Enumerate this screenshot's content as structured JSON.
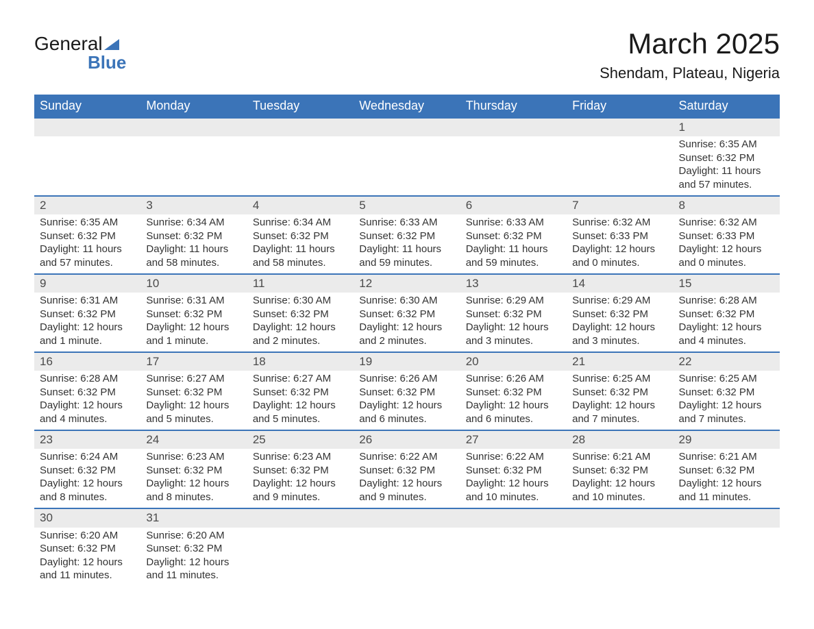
{
  "logo": {
    "word1": "General",
    "word2": "Blue"
  },
  "title": "March 2025",
  "location": "Shendam, Plateau, Nigeria",
  "calendar": {
    "header_bg": "#3b74b8",
    "header_text_color": "#ffffff",
    "daynum_bg": "#ebebeb",
    "row_divider_color": "#3b74b8",
    "body_bg": "#ffffff",
    "text_color": "#333333",
    "font_family": "Arial",
    "header_fontsize": 18,
    "daynum_fontsize": 17,
    "body_fontsize": 15,
    "days_of_week": [
      "Sunday",
      "Monday",
      "Tuesday",
      "Wednesday",
      "Thursday",
      "Friday",
      "Saturday"
    ],
    "weeks": [
      [
        null,
        null,
        null,
        null,
        null,
        null,
        {
          "n": "1",
          "sr": "Sunrise: 6:35 AM",
          "ss": "Sunset: 6:32 PM",
          "dl": "Daylight: 11 hours and 57 minutes."
        }
      ],
      [
        {
          "n": "2",
          "sr": "Sunrise: 6:35 AM",
          "ss": "Sunset: 6:32 PM",
          "dl": "Daylight: 11 hours and 57 minutes."
        },
        {
          "n": "3",
          "sr": "Sunrise: 6:34 AM",
          "ss": "Sunset: 6:32 PM",
          "dl": "Daylight: 11 hours and 58 minutes."
        },
        {
          "n": "4",
          "sr": "Sunrise: 6:34 AM",
          "ss": "Sunset: 6:32 PM",
          "dl": "Daylight: 11 hours and 58 minutes."
        },
        {
          "n": "5",
          "sr": "Sunrise: 6:33 AM",
          "ss": "Sunset: 6:32 PM",
          "dl": "Daylight: 11 hours and 59 minutes."
        },
        {
          "n": "6",
          "sr": "Sunrise: 6:33 AM",
          "ss": "Sunset: 6:32 PM",
          "dl": "Daylight: 11 hours and 59 minutes."
        },
        {
          "n": "7",
          "sr": "Sunrise: 6:32 AM",
          "ss": "Sunset: 6:33 PM",
          "dl": "Daylight: 12 hours and 0 minutes."
        },
        {
          "n": "8",
          "sr": "Sunrise: 6:32 AM",
          "ss": "Sunset: 6:33 PM",
          "dl": "Daylight: 12 hours and 0 minutes."
        }
      ],
      [
        {
          "n": "9",
          "sr": "Sunrise: 6:31 AM",
          "ss": "Sunset: 6:32 PM",
          "dl": "Daylight: 12 hours and 1 minute."
        },
        {
          "n": "10",
          "sr": "Sunrise: 6:31 AM",
          "ss": "Sunset: 6:32 PM",
          "dl": "Daylight: 12 hours and 1 minute."
        },
        {
          "n": "11",
          "sr": "Sunrise: 6:30 AM",
          "ss": "Sunset: 6:32 PM",
          "dl": "Daylight: 12 hours and 2 minutes."
        },
        {
          "n": "12",
          "sr": "Sunrise: 6:30 AM",
          "ss": "Sunset: 6:32 PM",
          "dl": "Daylight: 12 hours and 2 minutes."
        },
        {
          "n": "13",
          "sr": "Sunrise: 6:29 AM",
          "ss": "Sunset: 6:32 PM",
          "dl": "Daylight: 12 hours and 3 minutes."
        },
        {
          "n": "14",
          "sr": "Sunrise: 6:29 AM",
          "ss": "Sunset: 6:32 PM",
          "dl": "Daylight: 12 hours and 3 minutes."
        },
        {
          "n": "15",
          "sr": "Sunrise: 6:28 AM",
          "ss": "Sunset: 6:32 PM",
          "dl": "Daylight: 12 hours and 4 minutes."
        }
      ],
      [
        {
          "n": "16",
          "sr": "Sunrise: 6:28 AM",
          "ss": "Sunset: 6:32 PM",
          "dl": "Daylight: 12 hours and 4 minutes."
        },
        {
          "n": "17",
          "sr": "Sunrise: 6:27 AM",
          "ss": "Sunset: 6:32 PM",
          "dl": "Daylight: 12 hours and 5 minutes."
        },
        {
          "n": "18",
          "sr": "Sunrise: 6:27 AM",
          "ss": "Sunset: 6:32 PM",
          "dl": "Daylight: 12 hours and 5 minutes."
        },
        {
          "n": "19",
          "sr": "Sunrise: 6:26 AM",
          "ss": "Sunset: 6:32 PM",
          "dl": "Daylight: 12 hours and 6 minutes."
        },
        {
          "n": "20",
          "sr": "Sunrise: 6:26 AM",
          "ss": "Sunset: 6:32 PM",
          "dl": "Daylight: 12 hours and 6 minutes."
        },
        {
          "n": "21",
          "sr": "Sunrise: 6:25 AM",
          "ss": "Sunset: 6:32 PM",
          "dl": "Daylight: 12 hours and 7 minutes."
        },
        {
          "n": "22",
          "sr": "Sunrise: 6:25 AM",
          "ss": "Sunset: 6:32 PM",
          "dl": "Daylight: 12 hours and 7 minutes."
        }
      ],
      [
        {
          "n": "23",
          "sr": "Sunrise: 6:24 AM",
          "ss": "Sunset: 6:32 PM",
          "dl": "Daylight: 12 hours and 8 minutes."
        },
        {
          "n": "24",
          "sr": "Sunrise: 6:23 AM",
          "ss": "Sunset: 6:32 PM",
          "dl": "Daylight: 12 hours and 8 minutes."
        },
        {
          "n": "25",
          "sr": "Sunrise: 6:23 AM",
          "ss": "Sunset: 6:32 PM",
          "dl": "Daylight: 12 hours and 9 minutes."
        },
        {
          "n": "26",
          "sr": "Sunrise: 6:22 AM",
          "ss": "Sunset: 6:32 PM",
          "dl": "Daylight: 12 hours and 9 minutes."
        },
        {
          "n": "27",
          "sr": "Sunrise: 6:22 AM",
          "ss": "Sunset: 6:32 PM",
          "dl": "Daylight: 12 hours and 10 minutes."
        },
        {
          "n": "28",
          "sr": "Sunrise: 6:21 AM",
          "ss": "Sunset: 6:32 PM",
          "dl": "Daylight: 12 hours and 10 minutes."
        },
        {
          "n": "29",
          "sr": "Sunrise: 6:21 AM",
          "ss": "Sunset: 6:32 PM",
          "dl": "Daylight: 12 hours and 11 minutes."
        }
      ],
      [
        {
          "n": "30",
          "sr": "Sunrise: 6:20 AM",
          "ss": "Sunset: 6:32 PM",
          "dl": "Daylight: 12 hours and 11 minutes."
        },
        {
          "n": "31",
          "sr": "Sunrise: 6:20 AM",
          "ss": "Sunset: 6:32 PM",
          "dl": "Daylight: 12 hours and 11 minutes."
        },
        null,
        null,
        null,
        null,
        null
      ]
    ]
  }
}
